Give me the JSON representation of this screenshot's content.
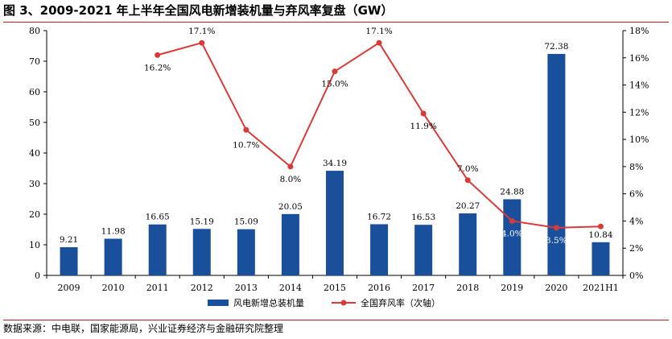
{
  "title": "图 3、2009-2021 年上半年全国风电新增装机量与弃风率复盘（GW）",
  "source": "数据来源：中电联，国家能源局，兴业证券经济与金融研究院整理",
  "colors": {
    "bar": "#1a4f9c",
    "line": "#d93a3a",
    "rule": "#b8231f"
  },
  "chart_data": {
    "type": "bar+line",
    "categories": [
      "2009",
      "2010",
      "2011",
      "2012",
      "2013",
      "2014",
      "2015",
      "2016",
      "2017",
      "2018",
      "2019",
      "2020",
      "2021H1"
    ],
    "series": [
      {
        "name": "风电新增总装机量",
        "type": "bar",
        "axis": "left",
        "values": [
          9.21,
          11.98,
          16.65,
          15.19,
          15.09,
          20.05,
          34.19,
          16.72,
          16.53,
          20.27,
          24.88,
          72.38,
          10.84
        ],
        "labels": [
          "9.21",
          "11.98",
          "16.65",
          "15.19",
          "15.09",
          "20.05",
          "34.19",
          "16.72",
          "16.53",
          "20.27",
          "24.88",
          "72.38",
          "10.84"
        ]
      },
      {
        "name": "全国弃风率（次轴）",
        "type": "line",
        "axis": "right",
        "values": [
          null,
          null,
          16.2,
          17.1,
          10.7,
          8.0,
          15.0,
          17.1,
          11.9,
          7.0,
          4.0,
          3.5,
          3.6
        ],
        "labels": [
          "",
          "",
          "16.2%",
          "17.1%",
          "10.7%",
          "8.0%",
          "15.0%",
          "17.1%",
          "11.9%",
          "7.0%",
          "4.0%",
          "3.5%",
          ""
        ]
      }
    ],
    "y_left": {
      "ylim": [
        0,
        80
      ],
      "ticks": [
        "0",
        "10",
        "20",
        "30",
        "40",
        "50",
        "60",
        "70",
        "80"
      ]
    },
    "y_right": {
      "ylim": [
        0,
        18
      ],
      "ticks": [
        "0%",
        "2%",
        "4%",
        "6%",
        "8%",
        "10%",
        "12%",
        "14%",
        "16%",
        "18%"
      ]
    },
    "legend": [
      "风电新增总装机量",
      "全国弃风率（次轴）"
    ],
    "legend_position": "bottom",
    "grid": false
  }
}
